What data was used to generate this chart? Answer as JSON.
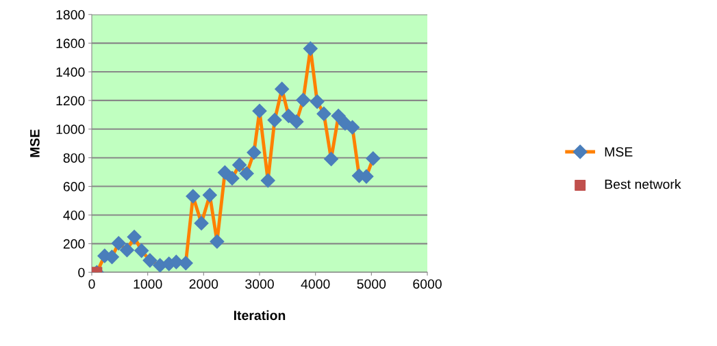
{
  "chart_data": {
    "type": "line",
    "xlabel": "Iteration",
    "ylabel": "MSE",
    "xlim": [
      0,
      6000
    ],
    "xticks": [
      0,
      1000,
      2000,
      3000,
      4000,
      5000,
      6000
    ],
    "ylim": [
      0,
      1800
    ],
    "yticks": [
      0,
      200,
      400,
      600,
      800,
      1000,
      1200,
      1400,
      1600,
      1800
    ],
    "grid": "y",
    "legend": "right",
    "series": [
      {
        "name": "MSE",
        "color": "#ff8000",
        "marker": "diamond",
        "x": [
          90,
          230,
          360,
          480,
          630,
          760,
          890,
          1040,
          1220,
          1380,
          1510,
          1680,
          1810,
          1960,
          2110,
          2240,
          2380,
          2510,
          2640,
          2770,
          2900,
          3000,
          3150,
          3270,
          3400,
          3520,
          3660,
          3780,
          3910,
          4030,
          4150,
          4280,
          4410,
          4530,
          4660,
          4780,
          4910,
          5030
        ],
        "values": [
          0,
          115,
          107,
          203,
          155,
          247,
          151,
          83,
          49,
          59,
          72,
          64,
          531,
          343,
          539,
          215,
          697,
          657,
          750,
          690,
          837,
          1127,
          641,
          1063,
          1280,
          1092,
          1052,
          1203,
          1562,
          1192,
          1107,
          791,
          1092,
          1040,
          1012,
          674,
          669,
          795
        ]
      },
      {
        "name": "Best network",
        "type": "scatter",
        "color": "#c0504d",
        "marker": "square",
        "x": [
          90
        ],
        "values": [
          0
        ]
      }
    ]
  }
}
